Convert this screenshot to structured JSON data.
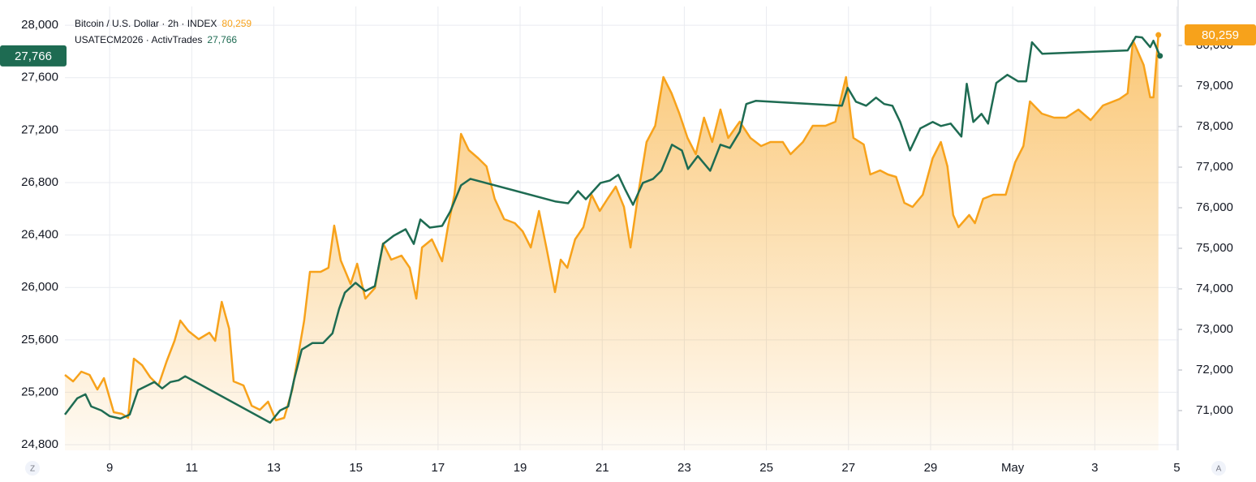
{
  "chart_data": {
    "type": "line",
    "subtype": "dual-axis-area-line",
    "xlim": [
      7.91,
      35.03
    ],
    "xticks": [
      9,
      11,
      13,
      15,
      17,
      19,
      21,
      23,
      25,
      27,
      29,
      {
        "value": 31,
        "label": "May"
      },
      {
        "value": 33,
        "label": "3"
      },
      {
        "value": 35,
        "label": "5"
      }
    ],
    "ylim": [
      24757,
      28143
    ],
    "yticks": [
      {
        "value": 24800,
        "label": "24,800"
      },
      {
        "value": 25200,
        "label": "25,200"
      },
      {
        "value": 25600,
        "label": "25,600"
      },
      {
        "value": 26000,
        "label": "26,000"
      },
      {
        "value": 26400,
        "label": "26,400"
      },
      {
        "value": 26800,
        "label": "26,800"
      },
      {
        "value": 27200,
        "label": "27,200"
      },
      {
        "value": 27600,
        "label": "27,600"
      },
      {
        "value": 28000,
        "label": "28,000"
      }
    ],
    "y2lim": [
      70020,
      80960
    ],
    "y2ticks": [
      {
        "value": 71000,
        "label": "71,000"
      },
      {
        "value": 72000,
        "label": "72,000"
      },
      {
        "value": 73000,
        "label": "73,000"
      },
      {
        "value": 74000,
        "label": "74,000"
      },
      {
        "value": 75000,
        "label": "75,000"
      },
      {
        "value": 76000,
        "label": "76,000"
      },
      {
        "value": 77000,
        "label": "77,000"
      },
      {
        "value": 78000,
        "label": "78,000"
      },
      {
        "value": 79000,
        "label": "79,000"
      },
      {
        "value": 80000,
        "label": "80,000"
      }
    ],
    "grid": true,
    "series": [
      {
        "name": "Bitcoin / U.S. Dollar · 2h · INDEX",
        "color": "#f7a21b",
        "axis": "y2",
        "area": true,
        "last_label": "80,259",
        "x": [
          7.91,
          8.11,
          8.31,
          8.51,
          8.7,
          8.86,
          9.1,
          9.3,
          9.45,
          9.59,
          9.79,
          9.99,
          10.19,
          10.39,
          10.58,
          10.72,
          10.92,
          11.17,
          11.43,
          11.57,
          11.73,
          11.91,
          12.02,
          12.26,
          12.46,
          12.66,
          12.86,
          13.05,
          13.25,
          13.45,
          13.74,
          13.88,
          14.14,
          14.33,
          14.47,
          14.63,
          14.87,
          15.03,
          15.23,
          15.46,
          15.66,
          15.86,
          16.11,
          16.31,
          16.47,
          16.61,
          16.85,
          17.1,
          17.24,
          17.4,
          17.56,
          17.75,
          17.98,
          18.18,
          18.38,
          18.61,
          18.87,
          19.06,
          19.26,
          19.46,
          19.66,
          19.85,
          19.99,
          20.15,
          20.34,
          20.54,
          20.74,
          20.94,
          21.13,
          21.33,
          21.53,
          21.69,
          21.89,
          22.08,
          22.29,
          22.49,
          22.69,
          22.88,
          23.08,
          23.28,
          23.48,
          23.68,
          23.88,
          24.07,
          24.35,
          24.61,
          24.87,
          25.1,
          25.4,
          25.59,
          25.89,
          26.13,
          26.44,
          26.68,
          26.94,
          27.12,
          27.37,
          27.53,
          27.77,
          27.96,
          28.16,
          28.36,
          28.56,
          28.81,
          29.05,
          29.25,
          29.41,
          29.55,
          29.68,
          29.94,
          30.08,
          30.28,
          30.53,
          30.83,
          31.06,
          31.26,
          31.42,
          31.71,
          32.01,
          32.3,
          32.6,
          32.9,
          33.2,
          33.6,
          33.8,
          33.93,
          34.19,
          34.35,
          34.43,
          34.55
        ],
        "values": [
          71880,
          71720,
          71960,
          71880,
          71520,
          71800,
          70960,
          70920,
          70820,
          72280,
          72120,
          71820,
          71620,
          72220,
          72720,
          73220,
          72960,
          72760,
          72920,
          72720,
          73680,
          73020,
          71720,
          71620,
          71120,
          71020,
          71220,
          70760,
          70820,
          71520,
          73220,
          74420,
          74420,
          74520,
          75560,
          74700,
          74120,
          74620,
          73760,
          74020,
          75120,
          74720,
          74820,
          74520,
          73760,
          75020,
          75220,
          74680,
          75520,
          76320,
          77820,
          77420,
          77220,
          77020,
          76220,
          75720,
          75620,
          75420,
          75020,
          75920,
          74920,
          73920,
          74720,
          74520,
          75220,
          75520,
          76320,
          75920,
          76220,
          76520,
          76020,
          75020,
          76420,
          77620,
          78020,
          79220,
          78820,
          78320,
          77720,
          77320,
          78220,
          77620,
          78420,
          77720,
          78120,
          77720,
          77520,
          77620,
          77620,
          77320,
          77620,
          78020,
          78020,
          78120,
          79220,
          77720,
          77560,
          76820,
          76920,
          76820,
          76760,
          76120,
          76020,
          76320,
          77220,
          77620,
          77020,
          75820,
          75520,
          75820,
          75620,
          76220,
          76320,
          76320,
          77120,
          77520,
          78620,
          78320,
          78220,
          78220,
          78420,
          78160,
          78520,
          78680,
          78820,
          80120,
          79520,
          78720,
          78720,
          80259
        ]
      },
      {
        "name": "USATECM2026 · ActivTrades",
        "color": "#1e6b52",
        "axis": "y",
        "last_label": "27,766",
        "x": [
          7.91,
          8.21,
          8.41,
          8.55,
          8.8,
          9.0,
          9.26,
          9.49,
          9.69,
          9.89,
          10.09,
          10.28,
          10.48,
          10.68,
          10.84,
          12.91,
          13.15,
          13.35,
          13.49,
          13.68,
          13.94,
          14.2,
          14.43,
          14.59,
          14.73,
          14.99,
          15.23,
          15.46,
          15.66,
          15.92,
          16.21,
          16.41,
          16.57,
          16.8,
          17.1,
          17.3,
          17.56,
          17.79,
          19.87,
          20.17,
          20.41,
          20.6,
          20.96,
          21.19,
          21.39,
          21.55,
          21.75,
          21.99,
          22.24,
          22.44,
          22.7,
          22.94,
          23.09,
          23.33,
          23.63,
          23.88,
          24.11,
          24.35,
          24.51,
          24.74,
          26.84,
          26.98,
          27.18,
          27.43,
          27.67,
          27.87,
          28.07,
          28.26,
          28.5,
          28.75,
          29.05,
          29.25,
          29.49,
          29.75,
          29.88,
          30.04,
          30.24,
          30.4,
          30.6,
          30.87,
          31.13,
          31.33,
          31.47,
          31.72,
          33.8,
          34.0,
          34.15,
          34.35,
          34.43,
          34.59
        ],
        "values": [
          25030,
          25154,
          25185,
          25092,
          25061,
          25018,
          24999,
          25030,
          25216,
          25247,
          25278,
          25229,
          25278,
          25291,
          25322,
          24968,
          25061,
          25092,
          25291,
          25526,
          25576,
          25576,
          25650,
          25836,
          25960,
          26035,
          25973,
          26010,
          26332,
          26394,
          26444,
          26332,
          26518,
          26456,
          26469,
          26580,
          26779,
          26828,
          26655,
          26642,
          26735,
          26673,
          26797,
          26816,
          26859,
          26754,
          26630,
          26797,
          26828,
          26890,
          27089,
          27045,
          26903,
          27002,
          26890,
          27089,
          27064,
          27188,
          27399,
          27423,
          27386,
          27523,
          27417,
          27386,
          27448,
          27399,
          27386,
          27262,
          27045,
          27213,
          27262,
          27231,
          27250,
          27151,
          27554,
          27262,
          27324,
          27250,
          27560,
          27622,
          27572,
          27572,
          27870,
          27783,
          27808,
          27913,
          27907,
          27833,
          27882,
          27766
        ]
      }
    ]
  },
  "controls": [
    "Z",
    "A"
  ]
}
